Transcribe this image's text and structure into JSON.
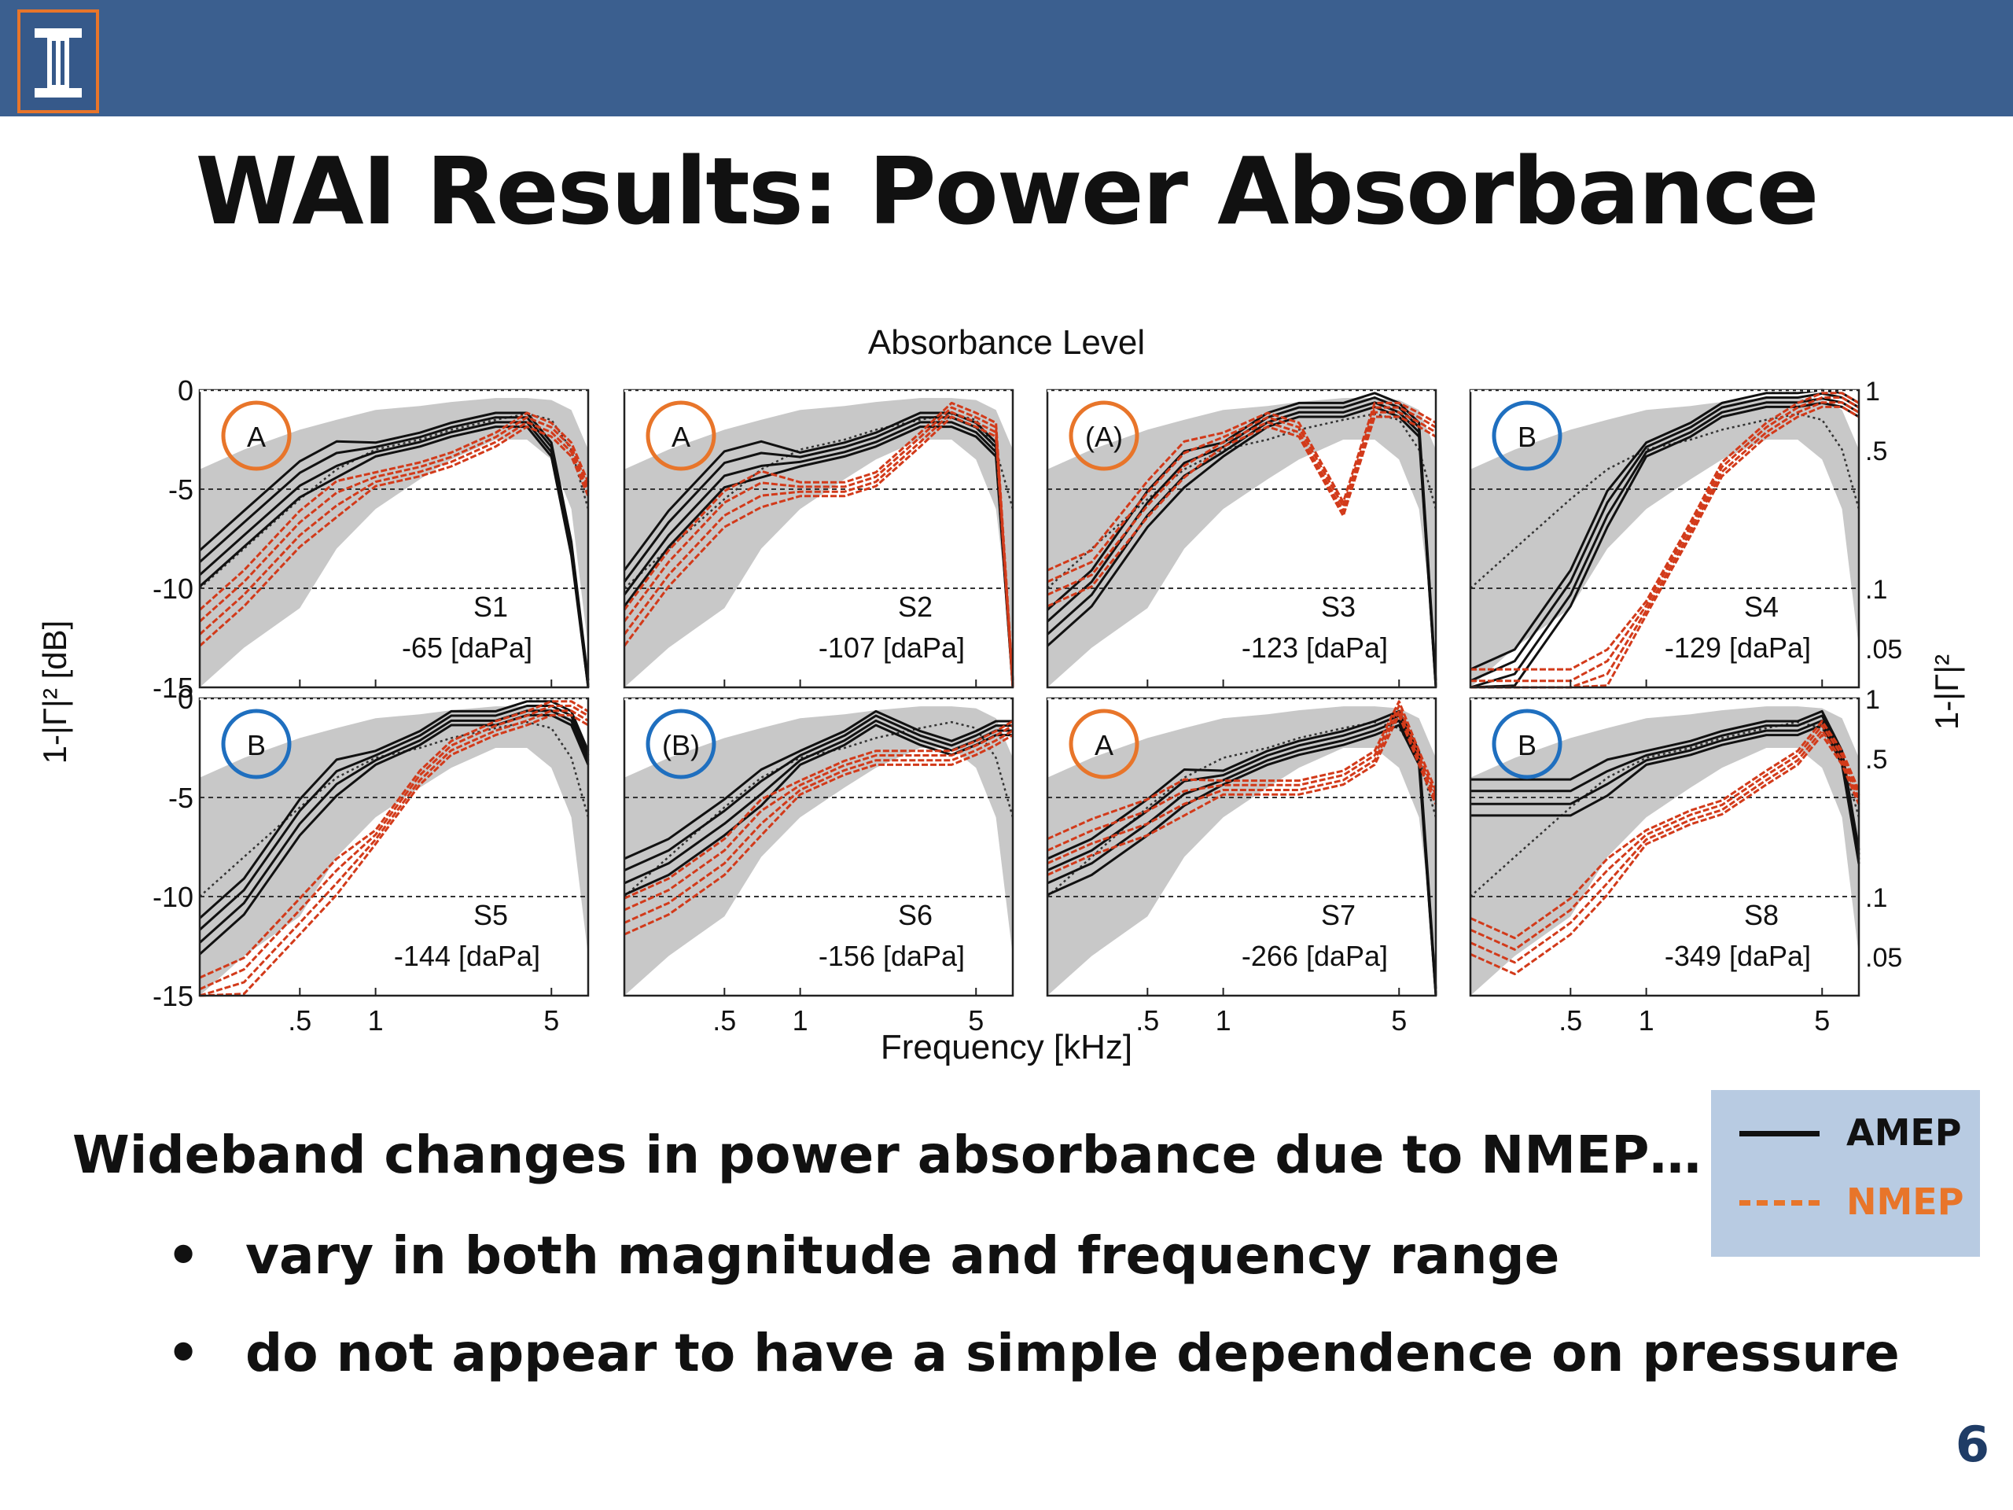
{
  "slide": {
    "title": "WAI Results: Power Absorbance",
    "body": "Wideband changes in power absorbance due to NMEP…",
    "bullets": [
      "vary in both magnitude and frequency range",
      "do not appear to have a simple dependence on pressure"
    ],
    "bullet_symbol": "•",
    "page_number": "6",
    "logo_icon": "illinois-column-icon"
  },
  "legend": {
    "items": [
      {
        "label": "AMEP",
        "color": "#111111",
        "style": "solid"
      },
      {
        "label": "NMEP",
        "color": "#e8752a",
        "style": "dashed"
      }
    ]
  },
  "colors": {
    "header_bar": "#3b5f8f",
    "amep_curve": "#111111",
    "nmep_curve": "#d23a1a",
    "norm_range": "#c8c8c8",
    "marker_A": "#e8752a",
    "marker_B": "#1f6fbf",
    "legend_bg": "#b8cbe2"
  },
  "chart_data": {
    "type": "line",
    "title": "Absorbance Level",
    "xlabel": "Frequency [kHz]",
    "ylabel_left": "1-|Γ|² [dB]",
    "ylabel_right": "1-|Γ|²",
    "x_scale": "log",
    "xlim": [
      0.2,
      7
    ],
    "ylim": [
      -15,
      0
    ],
    "x_ticks": [
      0.5,
      1,
      5
    ],
    "x_tick_labels": [
      ".5",
      "1",
      "5"
    ],
    "y_ticks": [
      0,
      -5,
      -10,
      -15
    ],
    "y_tick_labels": [
      "0",
      "-5",
      "-10",
      "-15"
    ],
    "right_ticks": [
      1,
      0.5,
      0.1,
      0.05
    ],
    "right_tick_labels": [
      "1",
      ".5",
      ".1",
      ".05"
    ],
    "grid": "dashed at -5 and -10",
    "frequencies": [
      0.2,
      0.3,
      0.5,
      0.7,
      1,
      1.5,
      2,
      3,
      4,
      5,
      6,
      7
    ],
    "panels": [
      {
        "subject": "S1",
        "pressure": "-65 [daPa]",
        "marker": "A",
        "marker_color": "orange",
        "amep": [
          -9,
          -7,
          -4.5,
          -3.5,
          -3,
          -2.5,
          -2,
          -1.5,
          -1.5,
          -3,
          -8,
          -15
        ],
        "nmep": [
          -12,
          -10,
          -7,
          -5.5,
          -4.5,
          -4,
          -3.5,
          -2.5,
          -1.5,
          -2,
          -3,
          -5
        ]
      },
      {
        "subject": "S2",
        "pressure": "-107 [daPa]",
        "marker": "A",
        "marker_color": "orange",
        "amep": [
          -10,
          -7,
          -4,
          -3.5,
          -3.5,
          -3,
          -2.5,
          -1.5,
          -1.5,
          -2,
          -3,
          -15
        ],
        "nmep": [
          -12,
          -9,
          -6,
          -5,
          -5,
          -5,
          -4.5,
          -2.5,
          -1,
          -1.5,
          -2,
          -15
        ]
      },
      {
        "subject": "S3",
        "pressure": "-123 [daPa]",
        "marker": "(A)",
        "marker_color": "orange",
        "amep": [
          -12,
          -10,
          -6,
          -4,
          -3,
          -1.5,
          -1,
          -1,
          -0.5,
          -1,
          -2,
          -15
        ],
        "nmep": [
          -10,
          -9,
          -5.5,
          -3.5,
          -2.5,
          -1.5,
          -2,
          -6,
          -1,
          -1,
          -1.5,
          -2
        ]
      },
      {
        "subject": "S4",
        "pressure": "-129 [daPa]",
        "marker": "B",
        "marker_color": "blue",
        "amep": [
          -15,
          -14,
          -10,
          -6,
          -3,
          -2,
          -1,
          -0.5,
          -0.5,
          -0.3,
          -0.5,
          -1
        ],
        "nmep": [
          -15,
          -15,
          -15,
          -14,
          -11,
          -7,
          -4,
          -2,
          -1,
          -0.5,
          -0.5,
          -1
        ]
      },
      {
        "subject": "S5",
        "pressure": "-144 [daPa]",
        "marker": "B",
        "marker_color": "blue",
        "amep": [
          -12,
          -10,
          -6,
          -4,
          -3,
          -2,
          -1,
          -1,
          -0.5,
          -0.5,
          -1,
          -3
        ],
        "nmep": [
          -15,
          -14,
          -11,
          -9,
          -7,
          -4,
          -2.5,
          -1.5,
          -1,
          -0.5,
          -0.5,
          -1
        ]
      },
      {
        "subject": "S6",
        "pressure": "-156 [daPa]",
        "marker": "(B)",
        "marker_color": "blue",
        "amep": [
          -9,
          -8,
          -6,
          -4.5,
          -3,
          -2,
          -1,
          -2,
          -2.5,
          -2,
          -1.5,
          -1.5
        ],
        "nmep": [
          -11,
          -10,
          -8,
          -6,
          -4.5,
          -3.5,
          -3,
          -3,
          -3,
          -2.5,
          -2,
          -1.5
        ]
      },
      {
        "subject": "S7",
        "pressure": "-266 [daPa]",
        "marker": "A",
        "marker_color": "orange",
        "amep": [
          -9,
          -8,
          -6,
          -4.5,
          -4,
          -3,
          -2.5,
          -2,
          -1.5,
          -1,
          -3,
          -15
        ],
        "nmep": [
          -8,
          -7,
          -6,
          -5,
          -4.5,
          -4.5,
          -4.5,
          -4,
          -3,
          -0.5,
          -3,
          -5
        ]
      },
      {
        "subject": "S8",
        "pressure": "-349 [daPa]",
        "marker": "B",
        "marker_color": "blue",
        "amep": [
          -5,
          -5,
          -5,
          -4,
          -3,
          -2.5,
          -2,
          -1.5,
          -1.5,
          -1,
          -3,
          -8
        ],
        "nmep": [
          -12,
          -13,
          -11,
          -9,
          -7,
          -6,
          -5.5,
          -4,
          -3,
          -1.5,
          -3,
          -5
        ]
      }
    ],
    "norm_upper": [
      -4,
      -3,
      -2,
      -1.5,
      -1,
      -0.8,
      -0.6,
      -0.4,
      -0.4,
      -0.5,
      -1,
      -3
    ],
    "norm_lower": [
      -15,
      -13,
      -11,
      -8,
      -6,
      -4.5,
      -3.5,
      -2.5,
      -2.5,
      -3.5,
      -6,
      -13
    ],
    "norm_median": [
      -10,
      -8,
      -5.5,
      -4,
      -3,
      -2.5,
      -2,
      -1.5,
      -1.2,
      -1.5,
      -3,
      -6
    ]
  }
}
